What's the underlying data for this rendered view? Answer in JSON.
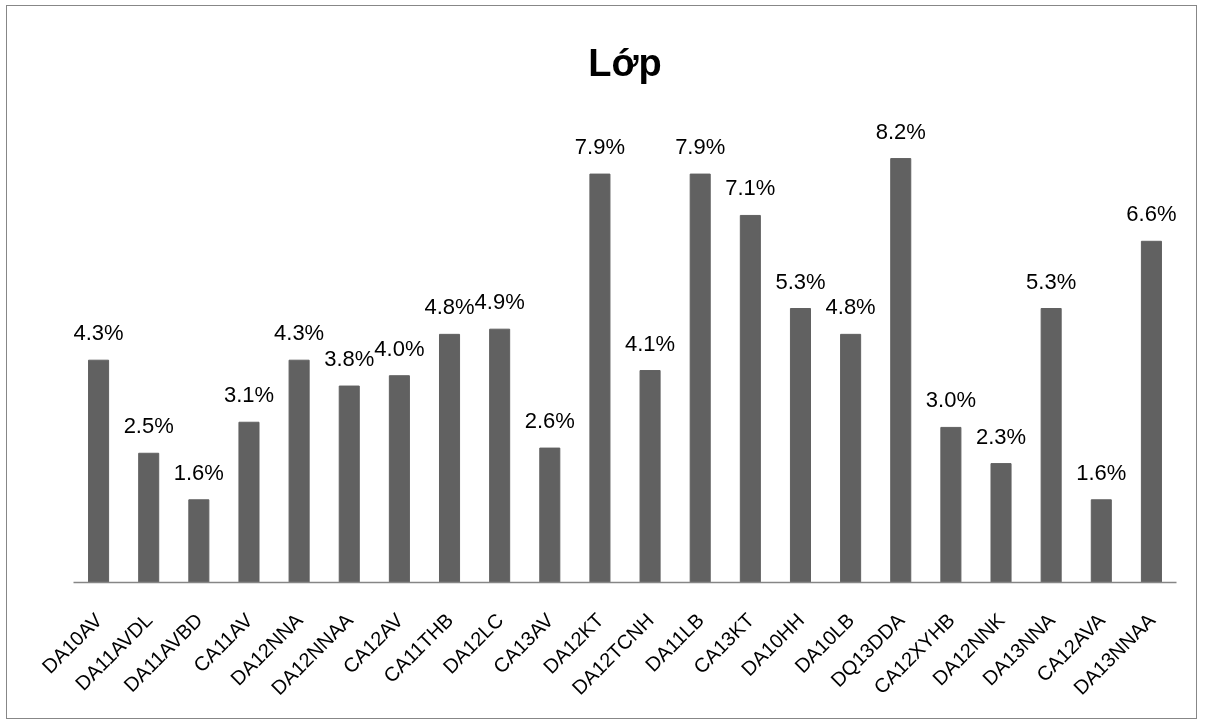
{
  "chart_data": {
    "type": "bar",
    "title": "Lớp",
    "categories": [
      "DA10AV",
      "DA11AVDL",
      "DA11AVBD",
      "CA11AV",
      "DA12NNA",
      "DA12NNAA",
      "CA12AV",
      "CA11THB",
      "DA12LC",
      "CA13AV",
      "DA12KT",
      "DA12TCNH",
      "DA11LB",
      "CA13KT",
      "DA10HH",
      "DA10LB",
      "DQ13DDA",
      "CA12XYHB",
      "DA12NNK",
      "DA13NNA",
      "CA12AVA",
      "DA13NNAA"
    ],
    "values": [
      4.3,
      2.5,
      1.6,
      3.1,
      4.3,
      3.8,
      4.0,
      4.8,
      4.9,
      2.6,
      7.9,
      4.1,
      7.9,
      7.1,
      5.3,
      4.8,
      8.2,
      3.0,
      2.3,
      5.3,
      1.6,
      6.6
    ],
    "value_labels": [
      "4.3%",
      "2.5%",
      "1.6%",
      "3.1%",
      "4.3%",
      "3.8%",
      "4.0%",
      "4.8%",
      "4.9%",
      "2.6%",
      "7.9%",
      "4.1%",
      "7.9%",
      "7.1%",
      "5.3%",
      "4.8%",
      "8.2%",
      "3.0%",
      "2.3%",
      "5.3%",
      "1.6%",
      "6.6%"
    ],
    "color": "#616161",
    "tick_labels": "x"
  }
}
